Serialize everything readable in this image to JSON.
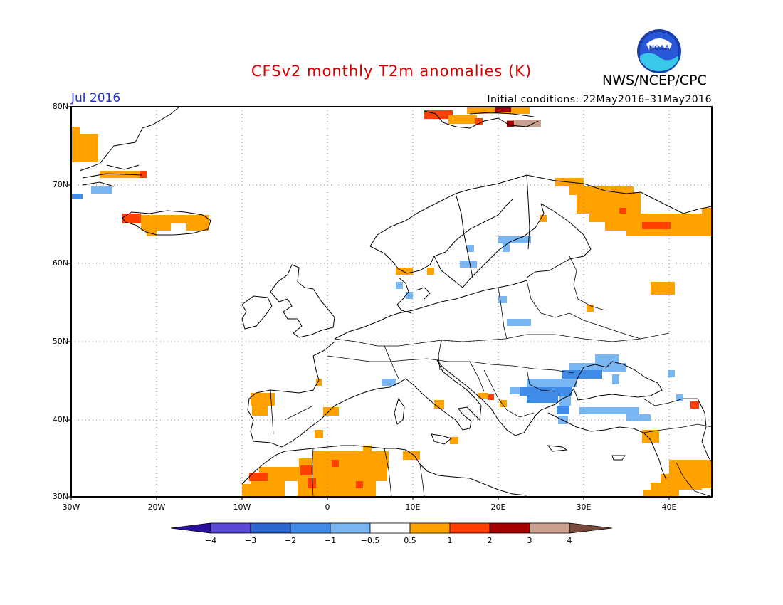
{
  "header": {
    "title": "CFSv2 monthly T2m anomalies (K)",
    "agency": "NWS/NCEP/CPC",
    "logo_text": "NOAA",
    "valid_month": "Jul 2016",
    "initial_conditions": "Initial conditions: 22May2016–31May2016"
  },
  "axes": {
    "lat_labels": [
      "80N",
      "70N",
      "60N",
      "50N",
      "40N",
      "30N"
    ],
    "lon_labels": [
      "30W",
      "20W",
      "10W",
      "0",
      "10E",
      "20E",
      "30E",
      "40E"
    ]
  },
  "colorbar": {
    "tick_labels": [
      "−4",
      "−3",
      "−2",
      "−1",
      "−0.5",
      "0.5",
      "1",
      "2",
      "3",
      "4"
    ],
    "colors": [
      "#2b0f9e",
      "#5a48d6",
      "#2a66d0",
      "#3f8ce8",
      "#7ab6f2",
      "#ffffff",
      "#ffa200",
      "#ff4000",
      "#a50000",
      "#c9a090",
      "#7a4a3a"
    ]
  },
  "colors": {
    "title": "#d40000",
    "month": "#1d2fd6",
    "land_outline": "#000000"
  }
}
